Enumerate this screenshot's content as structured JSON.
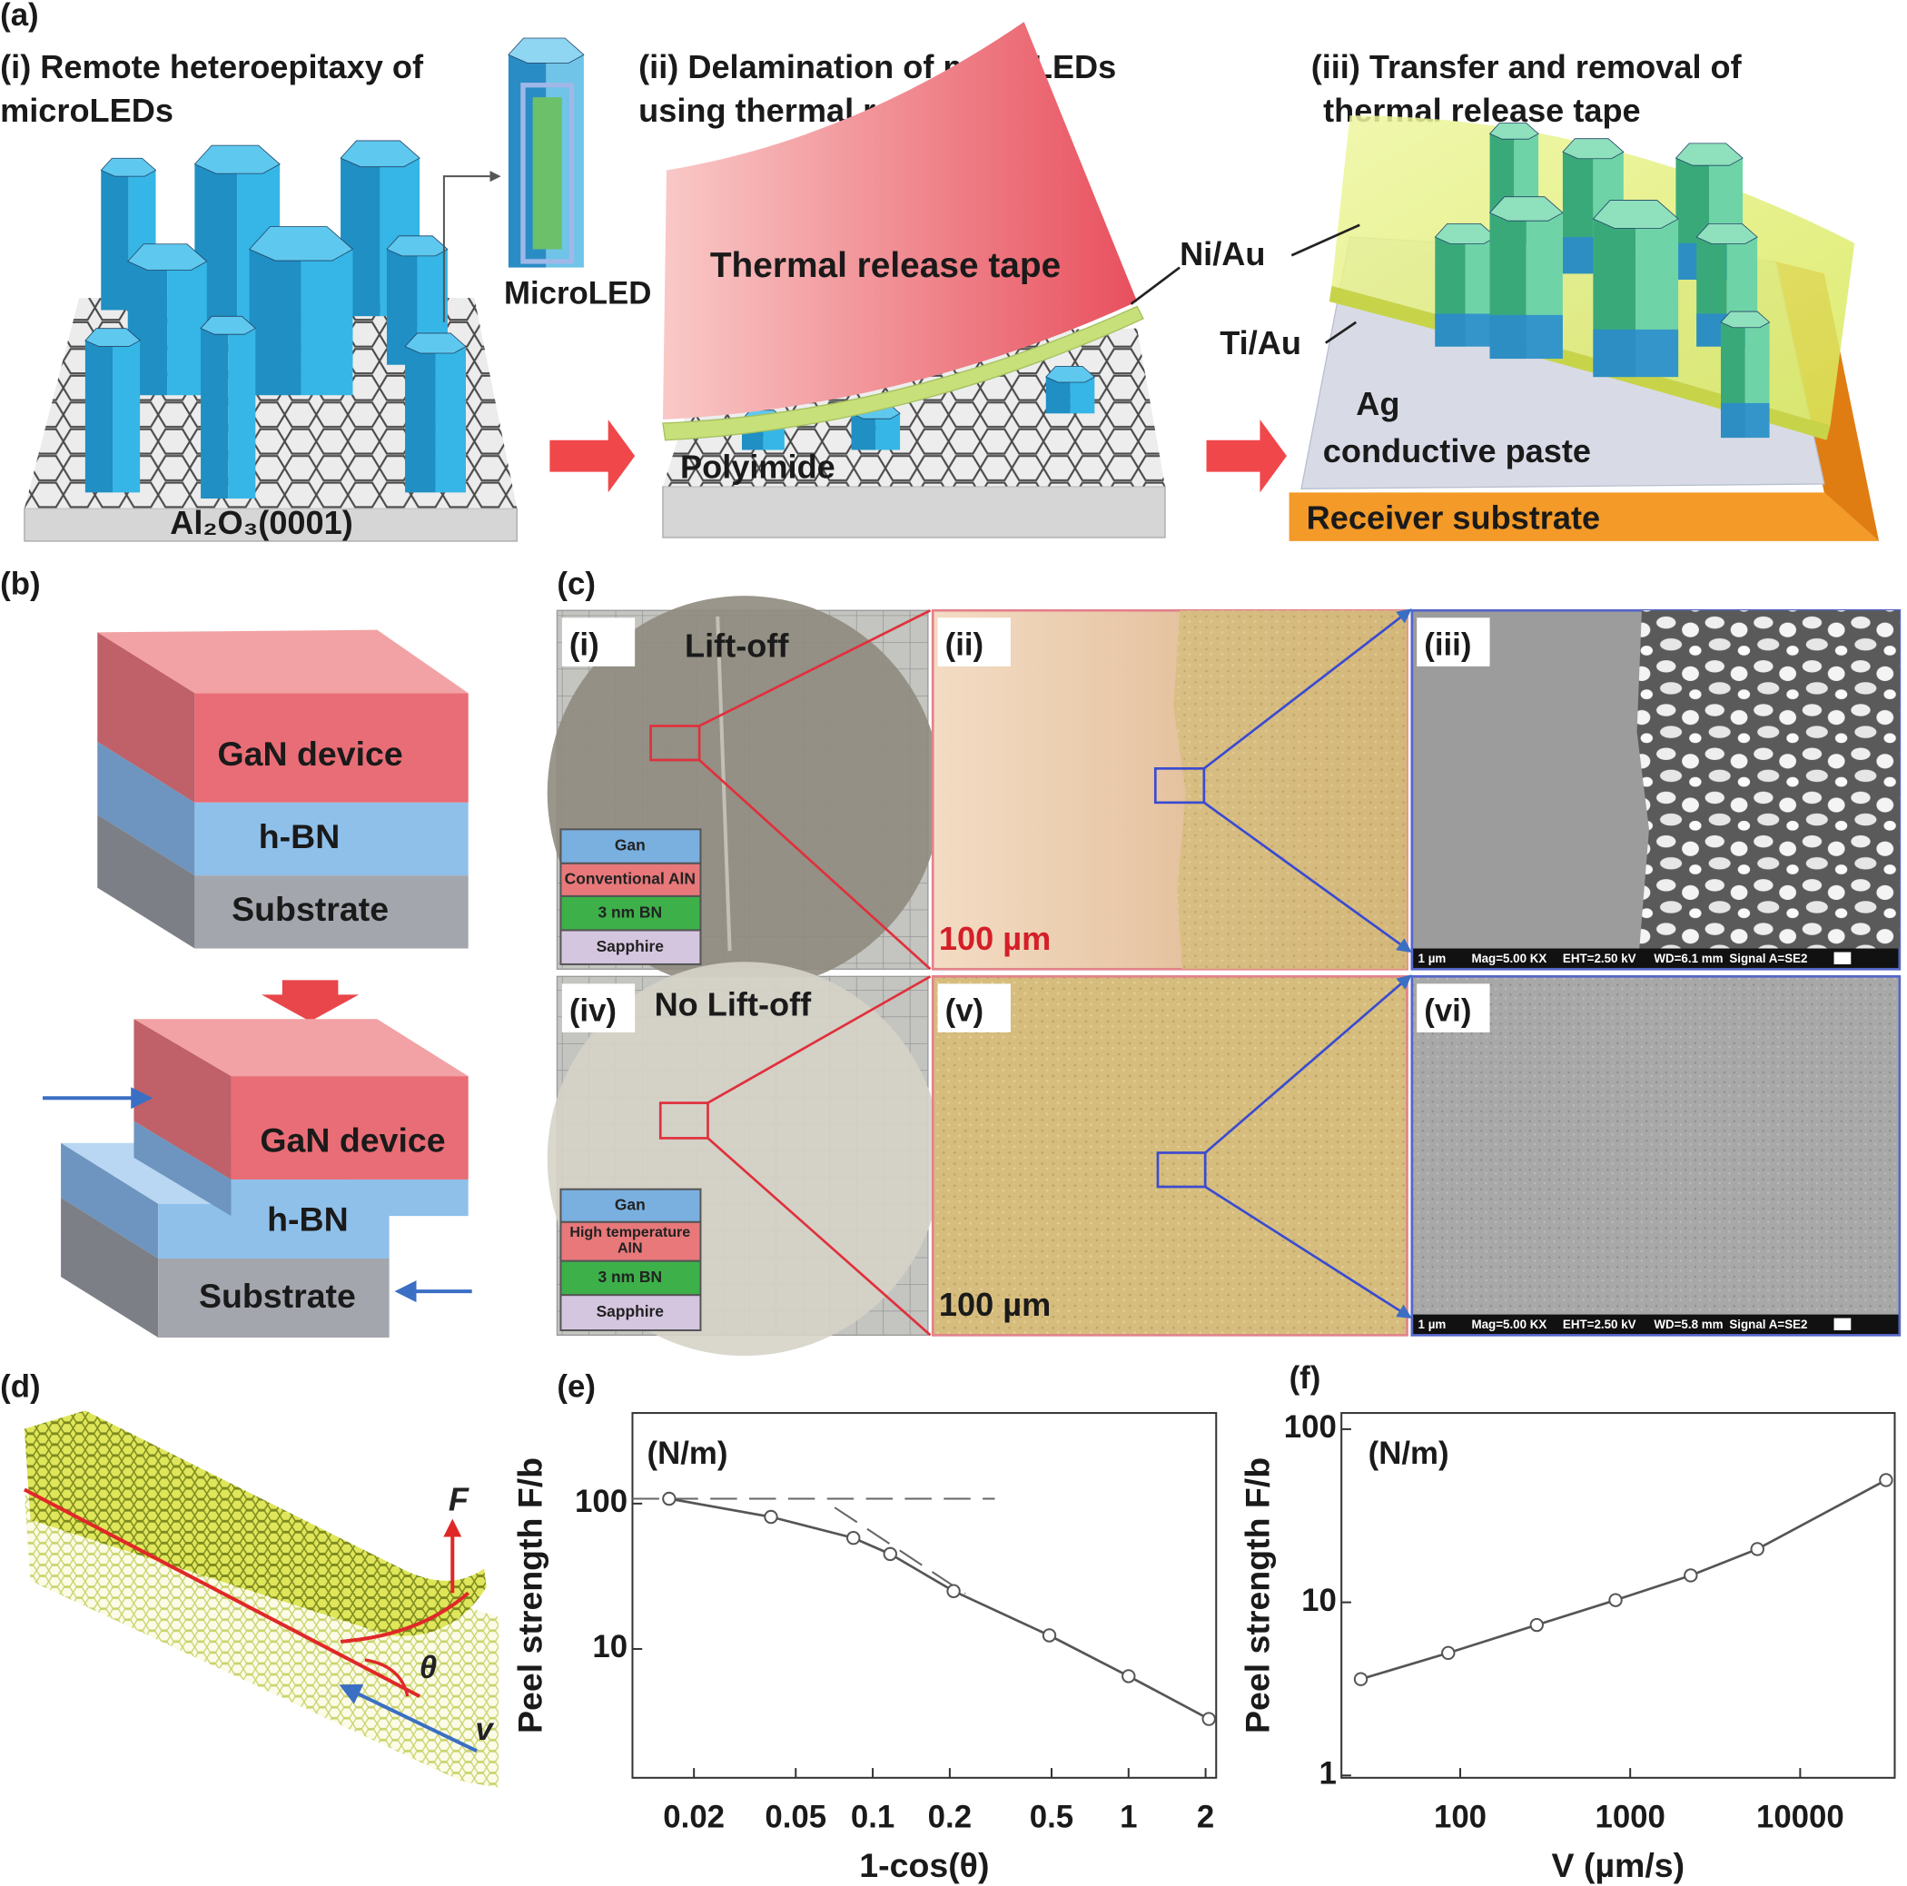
{
  "figure": {
    "a": {
      "label": "(a)",
      "i": {
        "title": [
          "(i) Remote heteroepitaxy of",
          "microLEDs"
        ],
        "inset": "MicroLED",
        "substrate": "Al₂O₃(0001)"
      },
      "ii": {
        "title": [
          "(ii) Delamination of microLEDs",
          "using thermal release tape"
        ],
        "tape": "Thermal release tape",
        "layer": "Polyimide",
        "metal": "Ni/Au"
      },
      "iii": {
        "title": [
          "(iii)  Transfer and removal of",
          "thermal release tape"
        ],
        "metal": "Ti/Au",
        "paste": [
          "Ag",
          "conductive paste"
        ],
        "substrate": "Receiver substrate"
      }
    },
    "b": {
      "label": "(b)",
      "before": [
        "GaN device",
        "h-BN",
        "Substrate"
      ],
      "after": [
        "GaN device",
        "h-BN",
        "Substrate"
      ]
    },
    "c": {
      "label": "(c)",
      "panels": [
        "(i)",
        "(ii)",
        "(iii)",
        "(iv)",
        "(v)",
        "(vi)"
      ],
      "top_caption": "Lift-off",
      "bottom_caption": "No Lift-off",
      "scale_bars": [
        "100 µm",
        "100 µm"
      ],
      "stacks": [
        [
          "Gan",
          "Conventional AlN",
          "3 nm BN",
          "Sapphire"
        ],
        [
          "Gan",
          "High temperature AlN",
          "3 nm BN",
          "Sapphire"
        ]
      ],
      "sem_info": [
        [
          "1 µm",
          "Mag=5.00 KX",
          "EHT=2.50 kV",
          "WD=6.1 mm",
          "Signal A=SE2"
        ],
        [
          "1 µm",
          "Mag=5.00 KX",
          "EHT=2.50 kV",
          "WD=5.8 mm",
          "Signal A=SE2"
        ]
      ]
    },
    "d": {
      "label": "(d)",
      "force": "F",
      "angle": "θ",
      "velocity": "v"
    },
    "e_label": "(e)",
    "f_label": "(f)"
  },
  "chart_data": [
    {
      "type": "line",
      "ylabel": "Peel strength F/b",
      "unit": "(N/m)",
      "xlabel": "1-cos(θ)",
      "xscale": "log",
      "yscale": "log",
      "color": "#555555",
      "x": [
        0.016,
        0.04,
        0.084,
        0.117,
        0.207,
        0.49,
        1.0,
        2.06
      ],
      "values": [
        108,
        81,
        58,
        45,
        25,
        12.4,
        6.5,
        3.3
      ],
      "guides": [
        {
          "x": [
            0.0115,
            0.3
          ],
          "values": [
            108,
            108
          ]
        },
        {
          "x": [
            0.071,
            0.23
          ],
          "values": [
            94,
            24
          ]
        }
      ],
      "xlim": [
        0.0115,
        2.2
      ],
      "ylim": [
        1.3,
        420
      ],
      "xticks": [
        0.02,
        0.05,
        0.1,
        0.2,
        0.5,
        1,
        2
      ],
      "yticks": [
        10,
        100
      ]
    },
    {
      "type": "line",
      "ylabel": "Peel strength F/b",
      "unit": "(N/m)",
      "xlabel": "V (µm/s)",
      "xscale": "log",
      "yscale": "log",
      "color": "#555555",
      "x": [
        26,
        85,
        282,
        820,
        2270,
        5600,
        32000
      ],
      "values": [
        3.6,
        5.1,
        7.4,
        10.3,
        14.3,
        20.3,
        50.8
      ],
      "xlim": [
        20,
        36000
      ],
      "ylim": [
        0.97,
        124
      ],
      "xticks": [
        100,
        1000,
        10000
      ],
      "yticks": [
        1,
        10,
        100
      ]
    }
  ]
}
